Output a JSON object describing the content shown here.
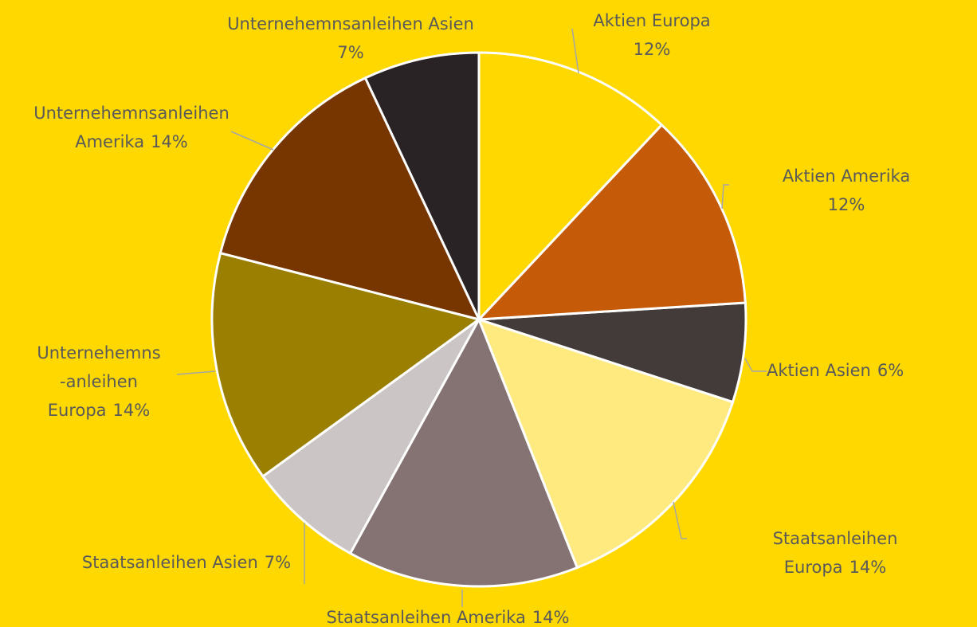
{
  "chart_data": {
    "type": "pie",
    "categories": [
      "Aktien Europa",
      "Aktien Amerika",
      "Aktien Asien",
      "Staatsanleihen Europa",
      "Staatsanleihen Amerika",
      "Staatsanleihen Asien",
      "Unternehemns\n-anleihen\nEuropa",
      "Unternehemnsanleihen\nAmerika",
      "Unternehemnsanleihen Asien"
    ],
    "values": [
      12,
      12,
      6,
      14,
      14,
      7,
      14,
      14,
      7
    ],
    "value_labels": [
      "12%",
      "12%",
      "6%",
      "14%",
      "14%",
      "7%",
      "14%",
      "14%",
      "7%"
    ],
    "colors": [
      "#FFD800",
      "#C55A08",
      "#433A3A",
      "#FFEA80",
      "#857272",
      "#CCC5C5",
      "#9A7F00",
      "#773600",
      "#2A2325"
    ],
    "background": "#FFD800"
  }
}
